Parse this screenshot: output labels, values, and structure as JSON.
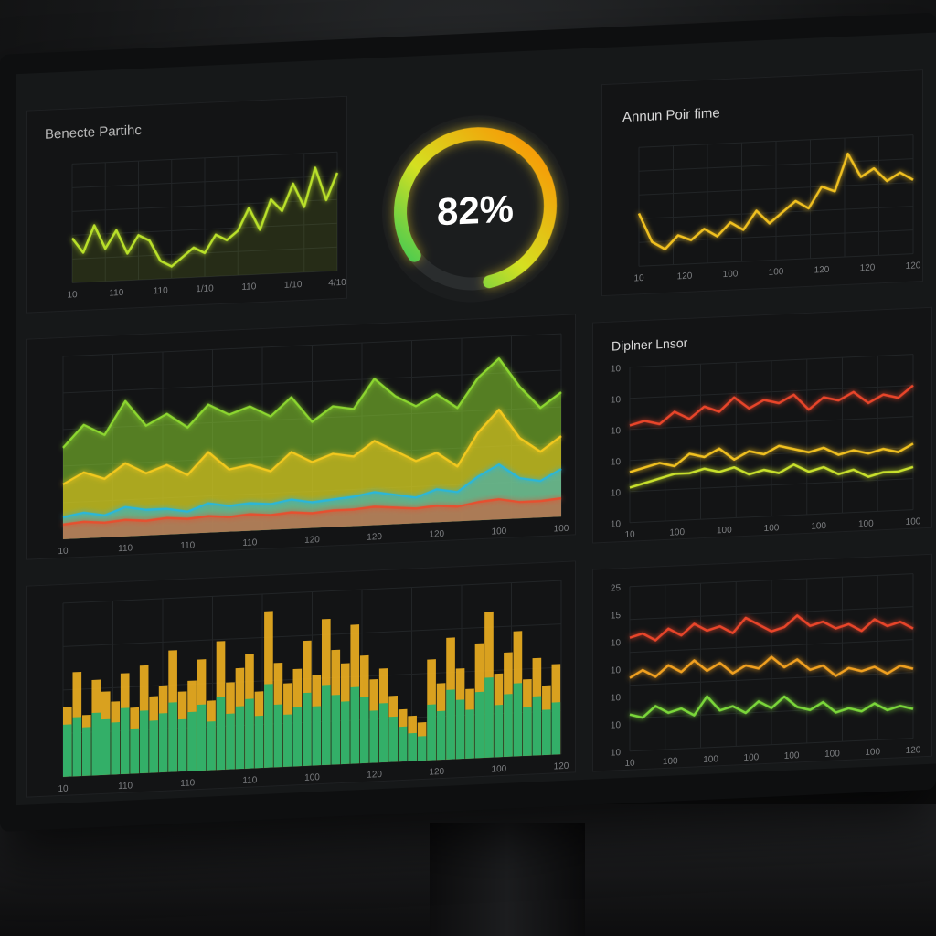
{
  "panels": {
    "top_left": {
      "title": "Benecte Partihc"
    },
    "gauge": {
      "value_text": "82%",
      "value": 0.82
    },
    "top_right": {
      "title": "Annun Poir fime"
    },
    "mid_right": {
      "title": "Diplner Lnsor"
    }
  },
  "chart_data": [
    {
      "type": "line",
      "panel": "top_left",
      "title": "Benecte Partihc",
      "x_ticks": [
        "10",
        "110",
        "110",
        "1/10",
        "110",
        "1/10",
        "4/10"
      ],
      "series": [
        {
          "color": "#b9e02a",
          "values": [
            30,
            20,
            38,
            22,
            34,
            18,
            30,
            26,
            12,
            8,
            14,
            20,
            16,
            28,
            24,
            30,
            45,
            30,
            50,
            42,
            60,
            44,
            70,
            48,
            66
          ]
        }
      ],
      "ylim": [
        0,
        80
      ]
    },
    {
      "type": "line",
      "panel": "top_right",
      "title": "Annun Poir fime",
      "x_ticks": [
        "10",
        "120",
        "100",
        "100",
        "120",
        "120",
        "120"
      ],
      "series": [
        {
          "color": "#f0c020",
          "values": [
            40,
            18,
            12,
            22,
            18,
            26,
            20,
            30,
            24,
            38,
            28,
            36,
            44,
            38,
            54,
            50,
            78,
            60,
            66,
            56,
            62,
            56
          ]
        }
      ],
      "ylim": [
        0,
        90
      ]
    },
    {
      "type": "area",
      "panel": "mid_left",
      "x_ticks": [
        "10",
        "110",
        "110",
        "110",
        "120",
        "120",
        "120",
        "100",
        "100"
      ],
      "series": [
        {
          "color": "#8cd630",
          "values": [
            50,
            62,
            56,
            74,
            60,
            66,
            58,
            70,
            64,
            68,
            62,
            72,
            58,
            66,
            64,
            80,
            70,
            64,
            70,
            62,
            78,
            88,
            72,
            60,
            68
          ]
        },
        {
          "color": "#f2c81e",
          "values": [
            30,
            36,
            32,
            40,
            34,
            38,
            32,
            44,
            34,
            36,
            32,
            42,
            36,
            40,
            38,
            46,
            40,
            34,
            38,
            30,
            48,
            60,
            44,
            36,
            44
          ]
        },
        {
          "color": "#2bb6d8",
          "values": [
            12,
            14,
            12,
            16,
            14,
            14,
            12,
            16,
            14,
            15,
            14,
            16,
            14,
            15,
            16,
            18,
            16,
            14,
            18,
            16,
            24,
            30,
            22,
            20,
            26
          ]
        },
        {
          "color": "#e55030",
          "values": [
            8,
            9,
            8,
            9,
            8,
            9,
            8,
            9,
            8,
            9,
            8,
            9,
            8,
            9,
            9,
            10,
            9,
            8,
            9,
            8,
            10,
            11,
            9,
            9,
            10
          ]
        }
      ],
      "ylim": [
        0,
        100
      ]
    },
    {
      "type": "line",
      "panel": "mid_right",
      "title": "Diplner Lnsor",
      "y_ticks": [
        "10",
        "10",
        "10",
        "10",
        "10",
        "10"
      ],
      "x_ticks": [
        "10",
        "100",
        "100",
        "100",
        "100",
        "100",
        "100"
      ],
      "series": [
        {
          "color": "#e8452a",
          "values": [
            50,
            52,
            50,
            56,
            52,
            58,
            55,
            62,
            56,
            60,
            58,
            62,
            54,
            60,
            58,
            62,
            56,
            60,
            58,
            64
          ]
        },
        {
          "color": "#f0c020",
          "values": [
            26,
            28,
            30,
            28,
            34,
            32,
            36,
            30,
            34,
            32,
            36,
            34,
            32,
            34,
            30,
            32,
            30,
            32,
            30,
            34
          ]
        },
        {
          "color": "#c8e02c",
          "values": [
            18,
            20,
            22,
            24,
            24,
            26,
            24,
            26,
            22,
            24,
            22,
            26,
            22,
            24,
            20,
            22,
            18,
            20,
            20,
            22
          ]
        }
      ],
      "ylim": [
        0,
        80
      ]
    },
    {
      "type": "bar",
      "panel": "bottom_left",
      "x_ticks": [
        "10",
        "110",
        "110",
        "110",
        "100",
        "120",
        "120",
        "100",
        "120"
      ],
      "series": [
        {
          "color": "#f0b020",
          "values": [
            40,
            60,
            35,
            55,
            48,
            42,
            58,
            38,
            62,
            44,
            50,
            70,
            46,
            52,
            64,
            40,
            74,
            50,
            58,
            66,
            44,
            90,
            60,
            48,
            56,
            72,
            52,
            84,
            66,
            58,
            80,
            62,
            48,
            54,
            38,
            30,
            26,
            22,
            58,
            44,
            70,
            52,
            40,
            66,
            84,
            48,
            60,
            72,
            44,
            56,
            40,
            52
          ]
        },
        {
          "color": "#20b070",
          "values": [
            30,
            34,
            28,
            36,
            32,
            30,
            38,
            26,
            36,
            30,
            34,
            40,
            30,
            34,
            38,
            28,
            42,
            32,
            36,
            40,
            30,
            48,
            36,
            30,
            34,
            42,
            34,
            46,
            40,
            36,
            44,
            38,
            30,
            34,
            26,
            20,
            16,
            14,
            32,
            28,
            40,
            34,
            28,
            38,
            46,
            30,
            36,
            42,
            28,
            34,
            26,
            30
          ]
        }
      ],
      "ylim": [
        0,
        100
      ]
    },
    {
      "type": "line",
      "panel": "bottom_right",
      "y_ticks": [
        "25",
        "15",
        "10",
        "10",
        "10",
        "10",
        "10"
      ],
      "x_ticks": [
        "10",
        "100",
        "100",
        "100",
        "100",
        "100",
        "100",
        "120"
      ],
      "series": [
        {
          "color": "#e8452a",
          "values": [
            62,
            64,
            60,
            66,
            62,
            68,
            64,
            66,
            62,
            70,
            66,
            62,
            64,
            70,
            64,
            66,
            62,
            64,
            60,
            66,
            62,
            64,
            60
          ]
        },
        {
          "color": "#f0a020",
          "values": [
            40,
            44,
            40,
            46,
            42,
            48,
            42,
            46,
            40,
            44,
            42,
            48,
            42,
            46,
            40,
            42,
            36,
            40,
            38,
            40,
            36,
            40,
            38
          ]
        },
        {
          "color": "#7ad63a",
          "values": [
            20,
            18,
            24,
            20,
            22,
            18,
            28,
            20,
            22,
            18,
            24,
            20,
            26,
            20,
            18,
            22,
            16,
            18,
            16,
            20,
            16,
            18,
            16
          ]
        }
      ],
      "ylim": [
        0,
        90
      ]
    }
  ]
}
